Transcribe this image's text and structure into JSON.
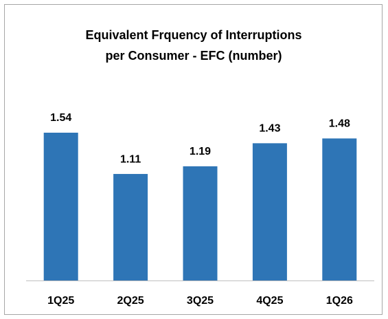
{
  "chart_data": {
    "type": "bar",
    "title": [
      "Equivalent Frquency of Interruptions",
      "per Consumer - EFC (number)"
    ],
    "categories": [
      "1Q25",
      "2Q25",
      "3Q25",
      "4Q25",
      "1Q26"
    ],
    "values": [
      1.54,
      1.11,
      1.19,
      1.43,
      1.48
    ],
    "color": "#2e75b6"
  }
}
